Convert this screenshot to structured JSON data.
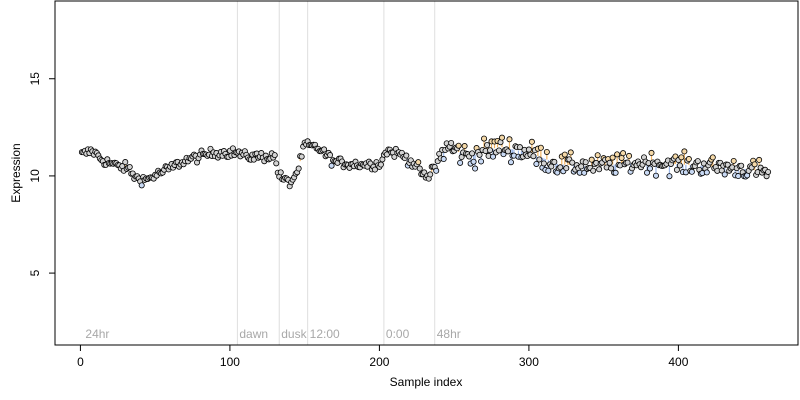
{
  "chart_data": {
    "type": "scatter",
    "title": "",
    "xlabel": "Sample index",
    "ylabel": "Expression",
    "xlim": [
      -17,
      480
    ],
    "ylim": [
      1.3,
      19
    ],
    "xticks": [
      0,
      100,
      200,
      300,
      400
    ],
    "yticks": [
      5,
      10,
      15
    ],
    "grid": false,
    "legend": "none",
    "n_points": 460,
    "vertical_lines": [
      {
        "x": 2,
        "label": "24hr",
        "draw_line": false
      },
      {
        "x": 105,
        "label": "dawn",
        "draw_line": true
      },
      {
        "x": 133,
        "label": "dusk",
        "draw_line": true
      },
      {
        "x": 152,
        "label": "12:00",
        "draw_line": true
      },
      {
        "x": 203,
        "label": "0:00",
        "draw_line": true
      },
      {
        "x": 237,
        "label": "48hr",
        "draw_line": true
      }
    ],
    "trend_knots": [
      [
        1,
        11.1
      ],
      [
        8,
        11.3
      ],
      [
        15,
        10.8
      ],
      [
        25,
        10.5
      ],
      [
        32,
        10.4
      ],
      [
        37,
        9.9
      ],
      [
        44,
        9.8
      ],
      [
        52,
        10.1
      ],
      [
        60,
        10.4
      ],
      [
        70,
        10.8
      ],
      [
        90,
        11.2
      ],
      [
        105,
        11.2
      ],
      [
        110,
        11.0
      ],
      [
        130,
        11.0
      ],
      [
        133,
        10.0
      ],
      [
        140,
        9.6
      ],
      [
        145,
        10.2
      ],
      [
        150,
        11.6
      ],
      [
        160,
        11.4
      ],
      [
        170,
        10.7
      ],
      [
        185,
        10.6
      ],
      [
        200,
        10.6
      ],
      [
        205,
        11.3
      ],
      [
        215,
        11.1
      ],
      [
        225,
        10.5
      ],
      [
        232,
        9.8
      ],
      [
        237,
        10.5
      ],
      [
        245,
        11.5
      ],
      [
        260,
        11.0
      ],
      [
        280,
        11.5
      ],
      [
        300,
        11.2
      ],
      [
        320,
        10.6
      ],
      [
        340,
        10.5
      ],
      [
        360,
        10.6
      ],
      [
        380,
        10.7
      ],
      [
        400,
        10.6
      ],
      [
        420,
        10.5
      ],
      [
        440,
        10.4
      ],
      [
        460,
        10.2
      ]
    ],
    "colors": {
      "point_fill_light": "#d3d3d3",
      "point_fill_warm": "#f5d9a8",
      "point_fill_cool": "#c9daf5",
      "point_outline": "#000000",
      "segment_warm": "#f2b563",
      "segment_cool": "#9cb7e8",
      "vline": "#dedede",
      "vline_label": "#a8a8a8"
    }
  }
}
